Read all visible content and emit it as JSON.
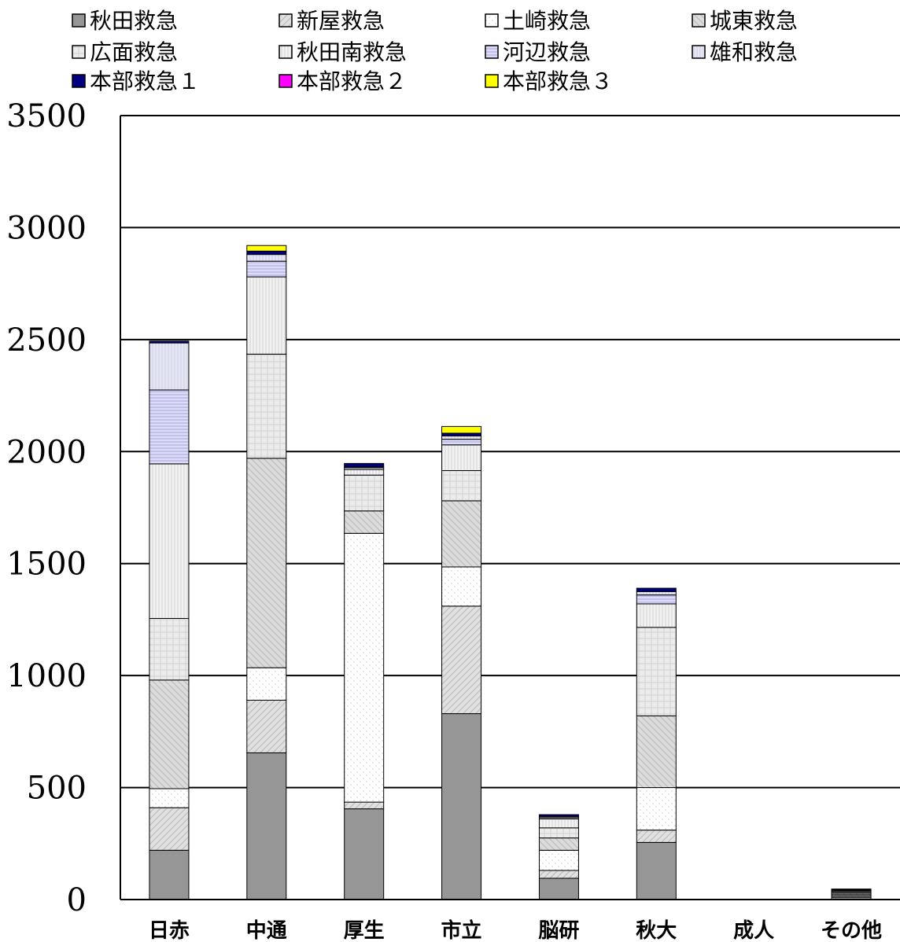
{
  "chart_data": {
    "type": "bar",
    "stacked": true,
    "title": "",
    "xlabel": "",
    "ylabel": "",
    "ylim": [
      0,
      3500
    ],
    "yticks": [
      0,
      500,
      1000,
      1500,
      2000,
      2500,
      3000,
      3500
    ],
    "grid": true,
    "legend_position": "top",
    "categories": [
      "日赤",
      "中通",
      "厚生",
      "市立",
      "脳研",
      "秋大",
      "成人",
      "その他"
    ],
    "series": [
      {
        "name": "秋田救急",
        "color": "#969696",
        "pattern": "solid",
        "values": [
          220,
          655,
          405,
          830,
          95,
          255,
          0,
          10
        ]
      },
      {
        "name": "新屋救急",
        "color": "#e0e0e0",
        "pattern": "diag",
        "values": [
          190,
          235,
          30,
          480,
          35,
          55,
          0,
          6
        ]
      },
      {
        "name": "土崎救急",
        "color": "#ffffff",
        "pattern": "dots",
        "values": [
          85,
          145,
          1200,
          175,
          90,
          190,
          0,
          6
        ]
      },
      {
        "name": "城東救急",
        "color": "#dcdcdc",
        "pattern": "diag2",
        "values": [
          485,
          935,
          100,
          295,
          55,
          320,
          0,
          6
        ]
      },
      {
        "name": "広面救急",
        "color": "#ececec",
        "pattern": "grid",
        "values": [
          275,
          465,
          160,
          135,
          45,
          395,
          0,
          5
        ]
      },
      {
        "name": "秋田南救急",
        "color": "#f2f2f2",
        "pattern": "vlines",
        "values": [
          690,
          345,
          25,
          115,
          40,
          105,
          0,
          5
        ]
      },
      {
        "name": "河辺救急",
        "color": "#dcdcf6",
        "pattern": "hlines",
        "values": [
          330,
          70,
          8,
          25,
          6,
          40,
          0,
          3
        ]
      },
      {
        "name": "雄和救急",
        "color": "#e4e4fa",
        "pattern": "vlines",
        "values": [
          210,
          30,
          4,
          15,
          5,
          15,
          0,
          3
        ]
      },
      {
        "name": "本部救急１",
        "color": "#000080",
        "pattern": "solid",
        "values": [
          8,
          15,
          15,
          12,
          8,
          15,
          0,
          3
        ]
      },
      {
        "name": "本部救急２",
        "color": "#ff00ff",
        "pattern": "solid",
        "values": [
          0,
          0,
          0,
          0,
          0,
          0,
          0,
          0
        ]
      },
      {
        "name": "本部救急３",
        "color": "#ffff00",
        "pattern": "solid",
        "values": [
          0,
          25,
          0,
          30,
          0,
          0,
          0,
          0
        ]
      }
    ]
  }
}
